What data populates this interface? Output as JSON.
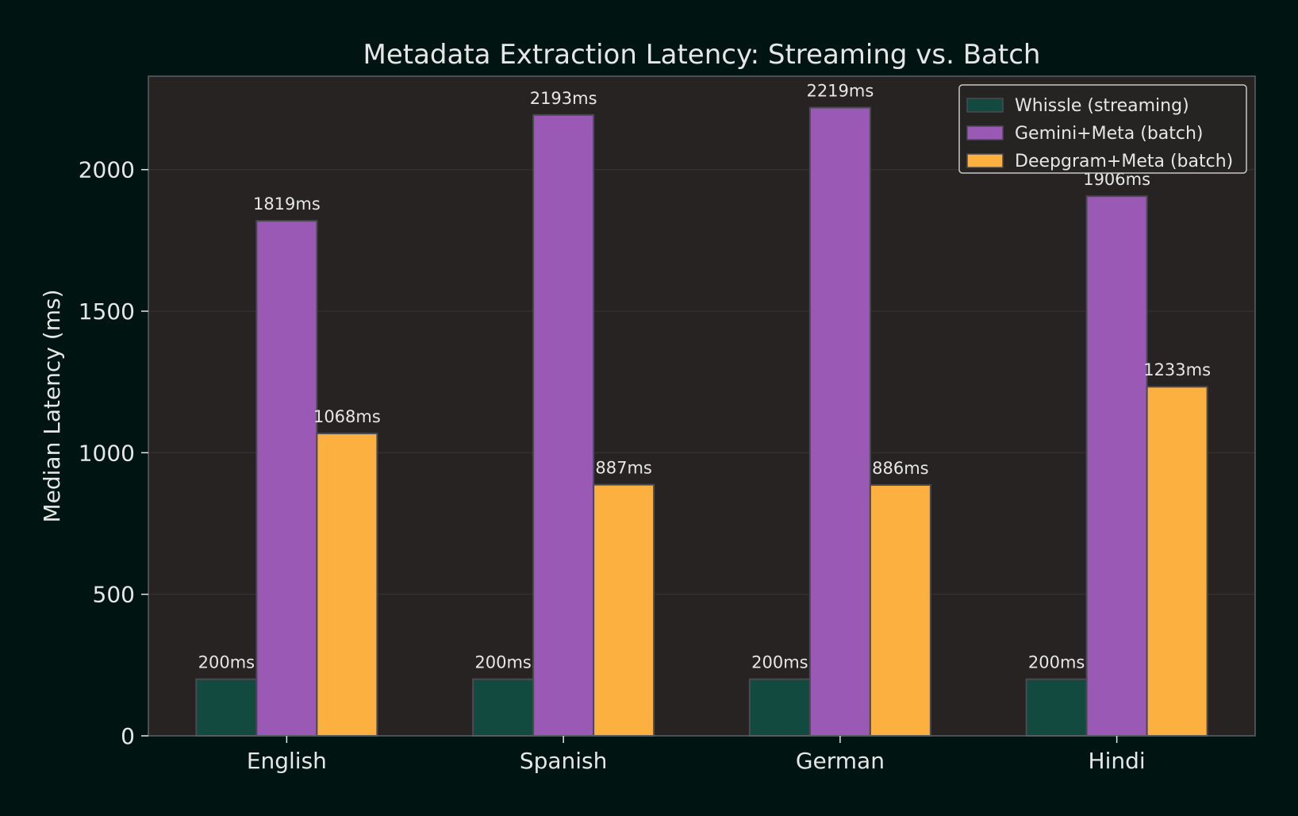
{
  "chart_data": {
    "type": "bar",
    "title": "Metadata Extraction Latency: Streaming vs. Batch",
    "ylabel": "Median Latency (ms)",
    "ylim": [
      0,
      2330
    ],
    "yticks": [
      0,
      500,
      1000,
      1500,
      2000
    ],
    "categories": [
      "English",
      "Spanish",
      "German",
      "Hindi"
    ],
    "grid": "horizontal",
    "legend_position": "top-right",
    "series": [
      {
        "name": "Whissle (streaming)",
        "color": "#124a3f",
        "values": [
          200,
          200,
          200,
          200
        ],
        "labels": [
          "200ms",
          "200ms",
          "200ms",
          "200ms"
        ]
      },
      {
        "name": "Gemini+Meta (batch)",
        "color": "#9b59b6",
        "values": [
          1819,
          2193,
          2219,
          1906
        ],
        "labels": [
          "1819ms",
          "2193ms",
          "2219ms",
          "1906ms"
        ]
      },
      {
        "name": "Deepgram+Meta (batch)",
        "color": "#fbb040",
        "values": [
          1068,
          887,
          886,
          1233
        ],
        "labels": [
          "1068ms",
          "887ms",
          "886ms",
          "1233ms"
        ]
      }
    ],
    "colors": {
      "background": "#001511",
      "plot_background": "#272323",
      "grid": "#3a3535",
      "axis": "#5a5f66",
      "text": "#e6e6e6"
    }
  }
}
